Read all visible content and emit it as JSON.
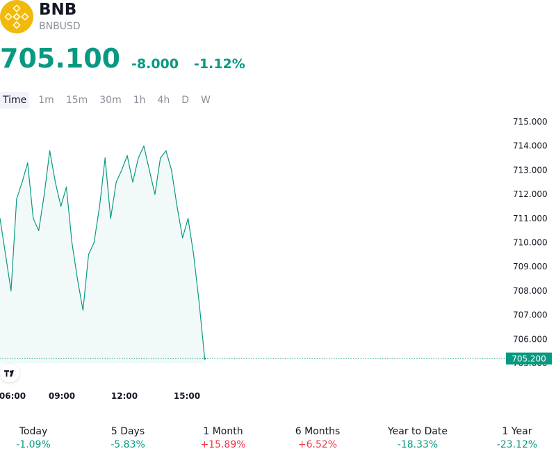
{
  "header": {
    "symbol": "BNB",
    "pair": "BNBUSD",
    "price": "705.100",
    "change_abs": "-8.000",
    "change_pct": "-1.12%"
  },
  "tabs": [
    {
      "label": "Time",
      "active": true
    },
    {
      "label": "1m"
    },
    {
      "label": "15m"
    },
    {
      "label": "30m"
    },
    {
      "label": "1h"
    },
    {
      "label": "4h"
    },
    {
      "label": "D"
    },
    {
      "label": "W"
    }
  ],
  "colors": {
    "accent": "#089981",
    "negative_red": "#f23645",
    "logo": "#f0b90b"
  },
  "chart_data": {
    "type": "area",
    "y_ticks": [
      "715.000",
      "714.000",
      "713.000",
      "712.000",
      "711.000",
      "710.000",
      "709.000",
      "708.000",
      "707.000",
      "706.000",
      "705.000"
    ],
    "ylim": [
      705.0,
      715.0
    ],
    "x_ticks": [
      "06:00",
      "09:00",
      "12:00",
      "15:00"
    ],
    "last_value_label": "705.200",
    "series": [
      {
        "x": [
          "06:00",
          "06:15",
          "06:30",
          "06:45",
          "07:00",
          "07:15",
          "07:30",
          "07:45",
          "08:00",
          "08:15",
          "08:30",
          "08:45",
          "09:00",
          "09:15",
          "09:30",
          "09:45",
          "10:00",
          "10:15",
          "10:30",
          "10:45",
          "11:00",
          "11:15",
          "11:30",
          "11:45",
          "12:00",
          "12:15",
          "12:30",
          "12:45",
          "13:00",
          "13:15",
          "13:30",
          "13:45",
          "14:00",
          "14:15",
          "14:30",
          "14:45",
          "15:00",
          "15:15"
        ],
        "values": [
          711.0,
          709.5,
          708.0,
          711.8,
          712.5,
          713.3,
          711.0,
          710.5,
          712.0,
          713.8,
          712.5,
          711.5,
          712.3,
          710.0,
          708.5,
          707.2,
          709.5,
          710.0,
          711.5,
          713.5,
          711.0,
          712.5,
          713.0,
          713.6,
          712.5,
          713.5,
          714.0,
          713.0,
          712.0,
          713.5,
          713.8,
          713.0,
          711.5,
          710.2,
          711.0,
          709.5,
          707.5,
          705.2
        ]
      }
    ]
  },
  "stats": [
    {
      "label": "Today",
      "value": "-1.09%",
      "dir": "neg"
    },
    {
      "label": "5 Days",
      "value": "-5.83%",
      "dir": "neg"
    },
    {
      "label": "1 Month",
      "value": "+15.89%",
      "dir": "pos"
    },
    {
      "label": "6 Months",
      "value": "+6.52%",
      "dir": "pos"
    },
    {
      "label": "Year to Date",
      "value": "-18.33%",
      "dir": "neg"
    },
    {
      "label": "1 Year",
      "value": "-23.12%",
      "dir": "neg"
    }
  ]
}
